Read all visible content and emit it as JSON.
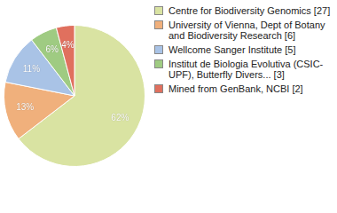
{
  "chart_data": {
    "type": "pie",
    "categories": [
      "Centre for Biodiversity Genomics [27]",
      "University of Vienna, Dept of Botany and Biodiversity Research [6]",
      "Wellcome Sanger Institute [5]",
      "Institut de Biologia Evolutiva (CSIC-UPF), Butterfly Divers... [3]",
      "Mined from GenBank, NCBI [2]"
    ],
    "values": [
      62,
      13,
      11,
      6,
      4
    ],
    "value_labels": [
      "62%",
      "13%",
      "11%",
      "6%",
      "4%"
    ],
    "colors": [
      "#d9e3a2",
      "#f0b07c",
      "#a9c3e6",
      "#9fcb82",
      "#e0705e"
    ],
    "data_labels": true,
    "legend": "right"
  }
}
